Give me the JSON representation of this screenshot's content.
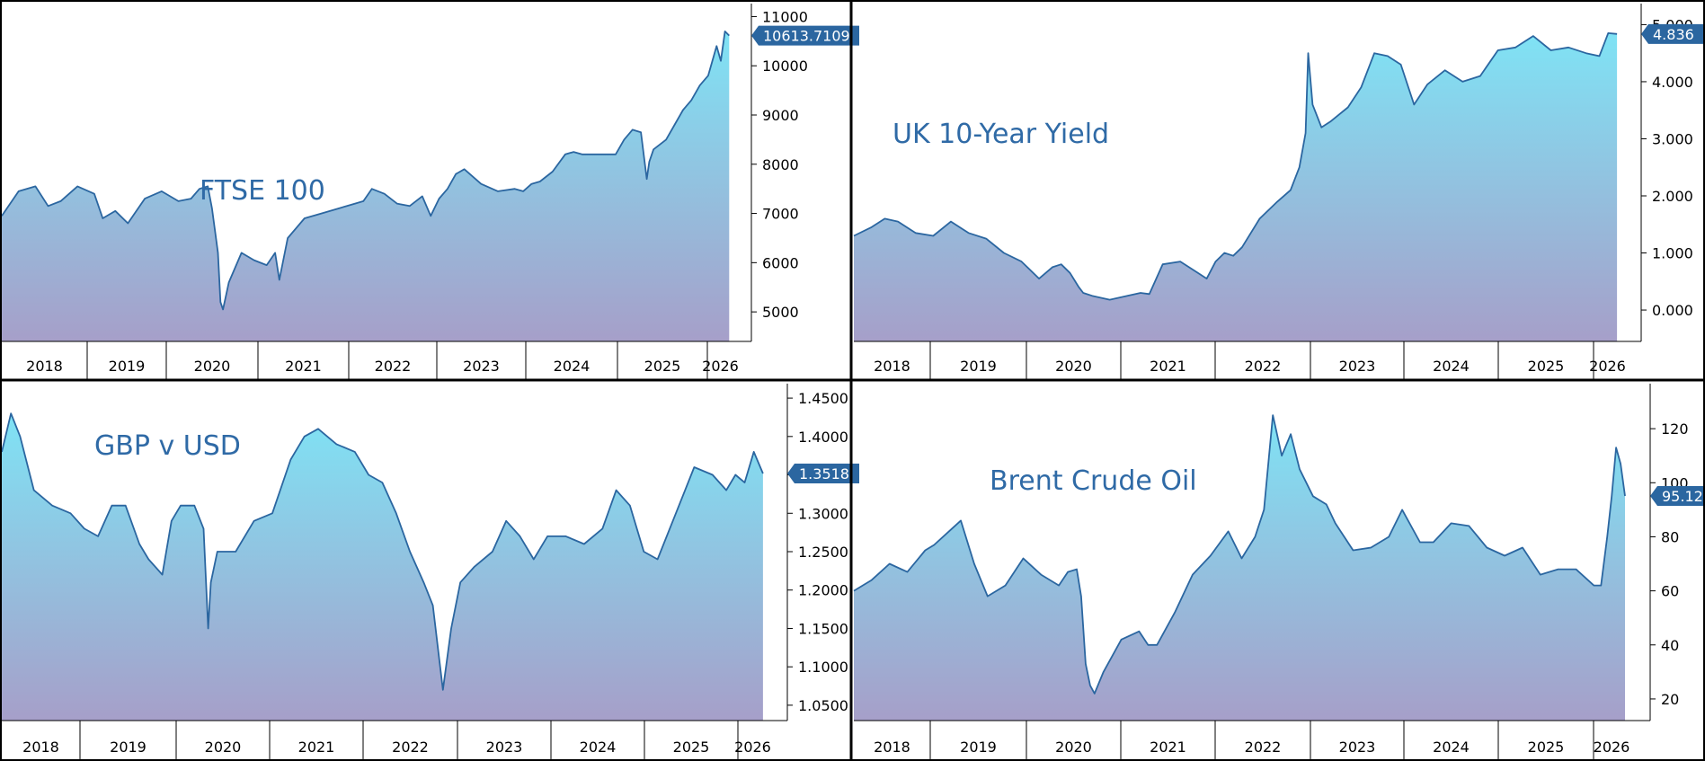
{
  "colors": {
    "line": "#2b66a0",
    "fill_top": "#7fe3f5",
    "fill_bottom": "#a69fc9",
    "frame": "#000000",
    "tag_bg": "#2b66a0",
    "tag_text": "#ffffff",
    "title": "#2f6aa6"
  },
  "charts": [
    {
      "id": "ftse",
      "title": "FTSE 100",
      "last_label": "10613.7109",
      "y_ticks": [
        "11000",
        "10000",
        "9000",
        "8000",
        "7000",
        "6000",
        "5000"
      ],
      "x_ticks": [
        "2018",
        "2019",
        "2020",
        "2021",
        "2022",
        "2023",
        "2024",
        "2025",
        "2026"
      ]
    },
    {
      "id": "gilt",
      "title": "UK 10-Year Yield",
      "last_label": "4.836",
      "y_ticks": [
        "5.000",
        "4.000",
        "3.000",
        "2.000",
        "1.000",
        "0.000"
      ],
      "x_ticks": [
        "2018",
        "2019",
        "2020",
        "2021",
        "2022",
        "2023",
        "2024",
        "2025",
        "2026"
      ]
    },
    {
      "id": "gbpusd",
      "title": "GBP v USD",
      "last_label": "1.3518",
      "y_ticks": [
        "1.4500",
        "1.4000",
        "1.3500",
        "1.3000",
        "1.2500",
        "1.2000",
        "1.1500",
        "1.1000",
        "1.0500"
      ],
      "x_ticks": [
        "2018",
        "2019",
        "2020",
        "2021",
        "2022",
        "2023",
        "2024",
        "2025",
        "2026"
      ]
    },
    {
      "id": "brent",
      "title": "Brent Crude Oil",
      "last_label": "95.12",
      "y_ticks": [
        "120",
        "100",
        "80",
        "60",
        "40",
        "20"
      ],
      "x_ticks": [
        "2018",
        "2019",
        "2020",
        "2021",
        "2022",
        "2023",
        "2024",
        "2025",
        "2026"
      ]
    }
  ],
  "chart_data": [
    {
      "type": "area",
      "title": "FTSE 100",
      "ylim": [
        4400,
        11300
      ],
      "xlim": [
        2017.6,
        2026.3
      ],
      "last_value": 10613.7109,
      "y_ticks": [
        11000,
        10000,
        9000,
        8000,
        7000,
        6000,
        5000
      ],
      "x_tick_labels": [
        "2018",
        "2019",
        "2020",
        "2021",
        "2022",
        "2023",
        "2024",
        "2025",
        "2026"
      ],
      "x": [
        2017.6,
        2017.8,
        2018.0,
        2018.15,
        2018.3,
        2018.5,
        2018.7,
        2018.8,
        2018.95,
        2019.1,
        2019.3,
        2019.5,
        2019.7,
        2019.85,
        2019.95,
        2020.05,
        2020.1,
        2020.17,
        2020.2,
        2020.23,
        2020.3,
        2020.45,
        2020.6,
        2020.75,
        2020.85,
        2020.9,
        2021.0,
        2021.2,
        2021.4,
        2021.6,
        2021.8,
        2021.9,
        2022.0,
        2022.15,
        2022.3,
        2022.45,
        2022.6,
        2022.7,
        2022.8,
        2022.9,
        2023.0,
        2023.1,
        2023.3,
        2023.5,
        2023.7,
        2023.8,
        2023.9,
        2024.0,
        2024.15,
        2024.3,
        2024.4,
        2024.5,
        2024.7,
        2024.9,
        2025.0,
        2025.1,
        2025.2,
        2025.27,
        2025.3,
        2025.35,
        2025.5,
        2025.6,
        2025.7,
        2025.8,
        2025.9,
        2026.0,
        2026.05,
        2026.1,
        2026.15,
        2026.2,
        2026.25
      ],
      "series": [
        {
          "values": [
            6950,
            7450,
            7550,
            7150,
            7250,
            7550,
            7400,
            6900,
            7050,
            6800,
            7300,
            7450,
            7250,
            7300,
            7500,
            7550,
            7100,
            6200,
            5200,
            5050,
            5600,
            6200,
            6050,
            5950,
            6200,
            5650,
            6500,
            6900,
            7000,
            7100,
            7200,
            7250,
            7500,
            7400,
            7200,
            7150,
            7350,
            6950,
            7300,
            7500,
            7800,
            7900,
            7600,
            7450,
            7500,
            7450,
            7600,
            7650,
            7850,
            8200,
            8250,
            8200,
            8200,
            8200,
            8500,
            8700,
            8650,
            7700,
            8050,
            8300,
            8500,
            8800,
            9100,
            9300,
            9600,
            9800,
            10100,
            10400,
            10100,
            10700,
            10613.7109
          ]
        }
      ]
    },
    {
      "type": "area",
      "title": "UK 10-Year Yield",
      "ylim": [
        -0.55,
        5.4
      ],
      "xlim": [
        2017.6,
        2026.3
      ],
      "last_value": 4.836,
      "y_ticks": [
        5.0,
        4.0,
        3.0,
        2.0,
        1.0,
        0.0
      ],
      "x_tick_labels": [
        "2018",
        "2019",
        "2020",
        "2021",
        "2022",
        "2023",
        "2024",
        "2025",
        "2026"
      ],
      "x": [
        2017.6,
        2017.8,
        2017.95,
        2018.1,
        2018.3,
        2018.5,
        2018.7,
        2018.9,
        2019.1,
        2019.3,
        2019.5,
        2019.7,
        2019.85,
        2019.95,
        2020.05,
        2020.15,
        2020.2,
        2020.3,
        2020.5,
        2020.7,
        2020.85,
        2020.95,
        2021.1,
        2021.3,
        2021.5,
        2021.6,
        2021.7,
        2021.8,
        2021.9,
        2022.0,
        2022.2,
        2022.4,
        2022.55,
        2022.65,
        2022.72,
        2022.75,
        2022.8,
        2022.9,
        2023.0,
        2023.2,
        2023.35,
        2023.5,
        2023.65,
        2023.8,
        2023.95,
        2024.1,
        2024.3,
        2024.5,
        2024.7,
        2024.9,
        2025.1,
        2025.3,
        2025.5,
        2025.7,
        2025.9,
        2026.05,
        2026.15,
        2026.25
      ],
      "series": [
        {
          "values": [
            1.3,
            1.45,
            1.6,
            1.55,
            1.35,
            1.3,
            1.55,
            1.35,
            1.25,
            1.0,
            0.85,
            0.55,
            0.75,
            0.8,
            0.65,
            0.4,
            0.3,
            0.25,
            0.18,
            0.25,
            0.3,
            0.28,
            0.8,
            0.85,
            0.65,
            0.55,
            0.85,
            1.0,
            0.95,
            1.1,
            1.6,
            1.9,
            2.1,
            2.5,
            3.1,
            4.5,
            3.6,
            3.2,
            3.3,
            3.55,
            3.9,
            4.5,
            4.45,
            4.3,
            3.6,
            3.95,
            4.2,
            4.0,
            4.1,
            4.55,
            4.6,
            4.8,
            4.55,
            4.6,
            4.5,
            4.45,
            4.85,
            4.836
          ]
        }
      ]
    },
    {
      "type": "area",
      "title": "GBP v USD",
      "ylim": [
        1.03,
        1.47
      ],
      "xlim": [
        2017.95,
        2026.3
      ],
      "last_value": 1.3518,
      "y_ticks": [
        1.45,
        1.4,
        1.35,
        1.3,
        1.25,
        1.2,
        1.15,
        1.1,
        1.05
      ],
      "x_tick_labels": [
        "2018",
        "2019",
        "2020",
        "2021",
        "2022",
        "2023",
        "2024",
        "2025",
        "2026"
      ],
      "x": [
        2017.95,
        2018.05,
        2018.15,
        2018.3,
        2018.5,
        2018.7,
        2018.85,
        2019.0,
        2019.15,
        2019.3,
        2019.45,
        2019.55,
        2019.7,
        2019.8,
        2019.9,
        2020.05,
        2020.15,
        2020.2,
        2020.23,
        2020.3,
        2020.5,
        2020.7,
        2020.9,
        2021.1,
        2021.25,
        2021.4,
        2021.6,
        2021.8,
        2021.95,
        2022.1,
        2022.25,
        2022.4,
        2022.55,
        2022.65,
        2022.72,
        2022.76,
        2022.85,
        2022.95,
        2023.1,
        2023.3,
        2023.45,
        2023.6,
        2023.75,
        2023.9,
        2024.1,
        2024.3,
        2024.5,
        2024.65,
        2024.8,
        2024.95,
        2025.1,
        2025.3,
        2025.5,
        2025.7,
        2025.85,
        2025.95,
        2026.05,
        2026.15,
        2026.25
      ],
      "series": [
        {
          "values": [
            1.38,
            1.43,
            1.4,
            1.33,
            1.31,
            1.3,
            1.28,
            1.27,
            1.31,
            1.31,
            1.26,
            1.24,
            1.22,
            1.29,
            1.31,
            1.31,
            1.28,
            1.15,
            1.21,
            1.25,
            1.25,
            1.29,
            1.3,
            1.37,
            1.4,
            1.41,
            1.39,
            1.38,
            1.35,
            1.34,
            1.3,
            1.25,
            1.21,
            1.18,
            1.11,
            1.07,
            1.15,
            1.21,
            1.23,
            1.25,
            1.29,
            1.27,
            1.24,
            1.27,
            1.27,
            1.26,
            1.28,
            1.33,
            1.31,
            1.25,
            1.24,
            1.3,
            1.36,
            1.35,
            1.33,
            1.35,
            1.34,
            1.38,
            1.3518
          ]
        }
      ]
    },
    {
      "type": "area",
      "title": "Brent Crude Oil",
      "ylim": [
        12,
        137
      ],
      "xlim": [
        2017.6,
        2026.3
      ],
      "last_value": 95.12,
      "y_ticks": [
        120,
        100,
        80,
        60,
        40,
        20
      ],
      "x_tick_labels": [
        "2018",
        "2019",
        "2020",
        "2021",
        "2022",
        "2023",
        "2024",
        "2025",
        "2026"
      ],
      "x": [
        2017.6,
        2017.8,
        2018.0,
        2018.2,
        2018.4,
        2018.5,
        2018.7,
        2018.8,
        2018.95,
        2019.1,
        2019.3,
        2019.5,
        2019.7,
        2019.9,
        2020.0,
        2020.1,
        2020.15,
        2020.2,
        2020.25,
        2020.3,
        2020.4,
        2020.6,
        2020.8,
        2020.9,
        2021.0,
        2021.2,
        2021.4,
        2021.6,
        2021.8,
        2021.95,
        2022.1,
        2022.2,
        2022.3,
        2022.4,
        2022.5,
        2022.6,
        2022.75,
        2022.9,
        2023.0,
        2023.2,
        2023.4,
        2023.6,
        2023.75,
        2023.95,
        2024.1,
        2024.3,
        2024.5,
        2024.7,
        2024.9,
        2025.1,
        2025.3,
        2025.5,
        2025.7,
        2025.9,
        2025.98,
        2026.05,
        2026.1,
        2026.15,
        2026.2,
        2026.25
      ],
      "series": [
        {
          "values": [
            60,
            64,
            70,
            67,
            75,
            77,
            83,
            86,
            70,
            58,
            62,
            72,
            66,
            62,
            67,
            68,
            58,
            33,
            25,
            22,
            30,
            42,
            45,
            40,
            40,
            52,
            66,
            73,
            82,
            72,
            80,
            90,
            125,
            110,
            118,
            105,
            95,
            92,
            85,
            75,
            76,
            80,
            90,
            78,
            78,
            85,
            84,
            76,
            73,
            76,
            66,
            68,
            68,
            62,
            62,
            80,
            95,
            113,
            107,
            95.12
          ]
        }
      ]
    }
  ]
}
